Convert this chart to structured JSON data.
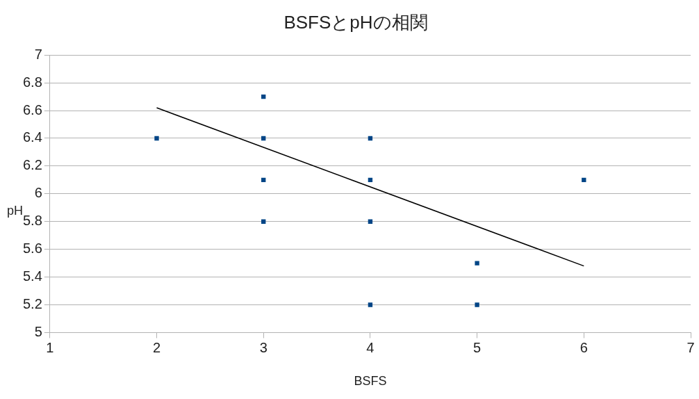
{
  "chart_data": {
    "type": "scatter",
    "title": "BSFSとpHの相関",
    "xlabel": "BSFS",
    "ylabel": "pH",
    "xlim": [
      1,
      7
    ],
    "xticks": [
      1,
      2,
      3,
      4,
      5,
      6,
      7
    ],
    "ylim": [
      5,
      7
    ],
    "yticks": [
      5,
      5.2,
      5.4,
      5.6,
      5.8,
      6,
      6.2,
      6.4,
      6.6,
      6.8,
      7
    ],
    "grid": "y",
    "legend": false,
    "marker": "square",
    "series": [
      {
        "color": "#004586",
        "x": [
          2,
          3,
          3,
          3,
          3,
          4,
          4,
          4,
          4,
          5,
          5,
          6
        ],
        "values": [
          6.4,
          6.7,
          6.4,
          6.1,
          5.8,
          6.4,
          6.1,
          5.8,
          5.2,
          5.5,
          5.2,
          6.1
        ]
      },
      {
        "type": "line",
        "color": "#000000",
        "marker": "none",
        "x": [
          2,
          6
        ],
        "values": [
          6.62,
          5.48
        ]
      }
    ]
  }
}
